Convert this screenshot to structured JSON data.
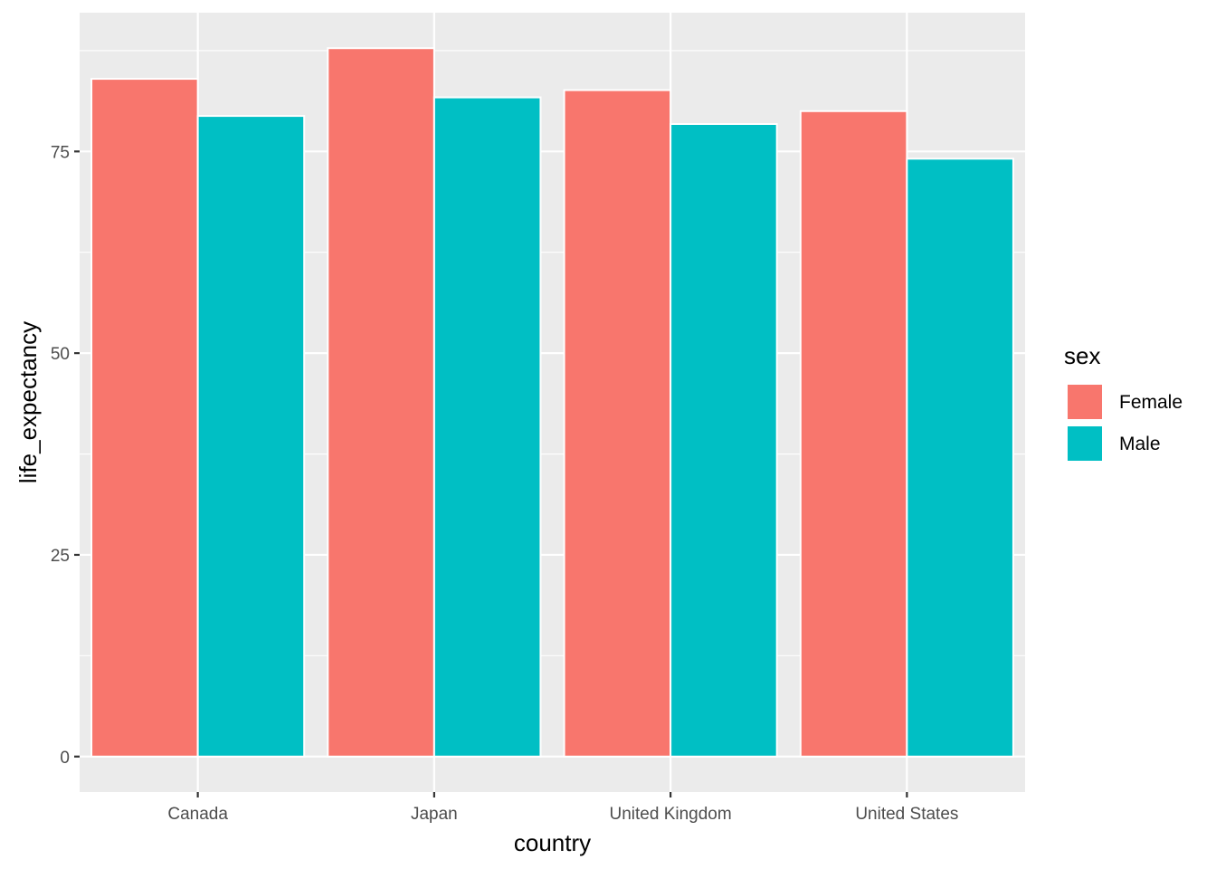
{
  "chart_data": {
    "type": "bar",
    "categories": [
      "Canada",
      "Japan",
      "United Kingdom",
      "United States"
    ],
    "series": [
      {
        "name": "Female",
        "values": [
          84.0,
          87.8,
          82.6,
          80.0
        ],
        "color": "#F8766D"
      },
      {
        "name": "Male",
        "values": [
          79.4,
          81.7,
          78.4,
          74.1
        ],
        "color": "#00BFC4"
      }
    ],
    "title": "",
    "xlabel": "country",
    "ylabel": "life_expectancy",
    "ylim": [
      -4.4,
      92.2
    ],
    "yticks": [
      0,
      25,
      50,
      75
    ],
    "ytick_labels": [
      "0",
      "25",
      "50",
      "75"
    ],
    "grid": true,
    "panel_background": "#EBEBEB",
    "legend": {
      "title": "sex",
      "position": "right"
    }
  }
}
